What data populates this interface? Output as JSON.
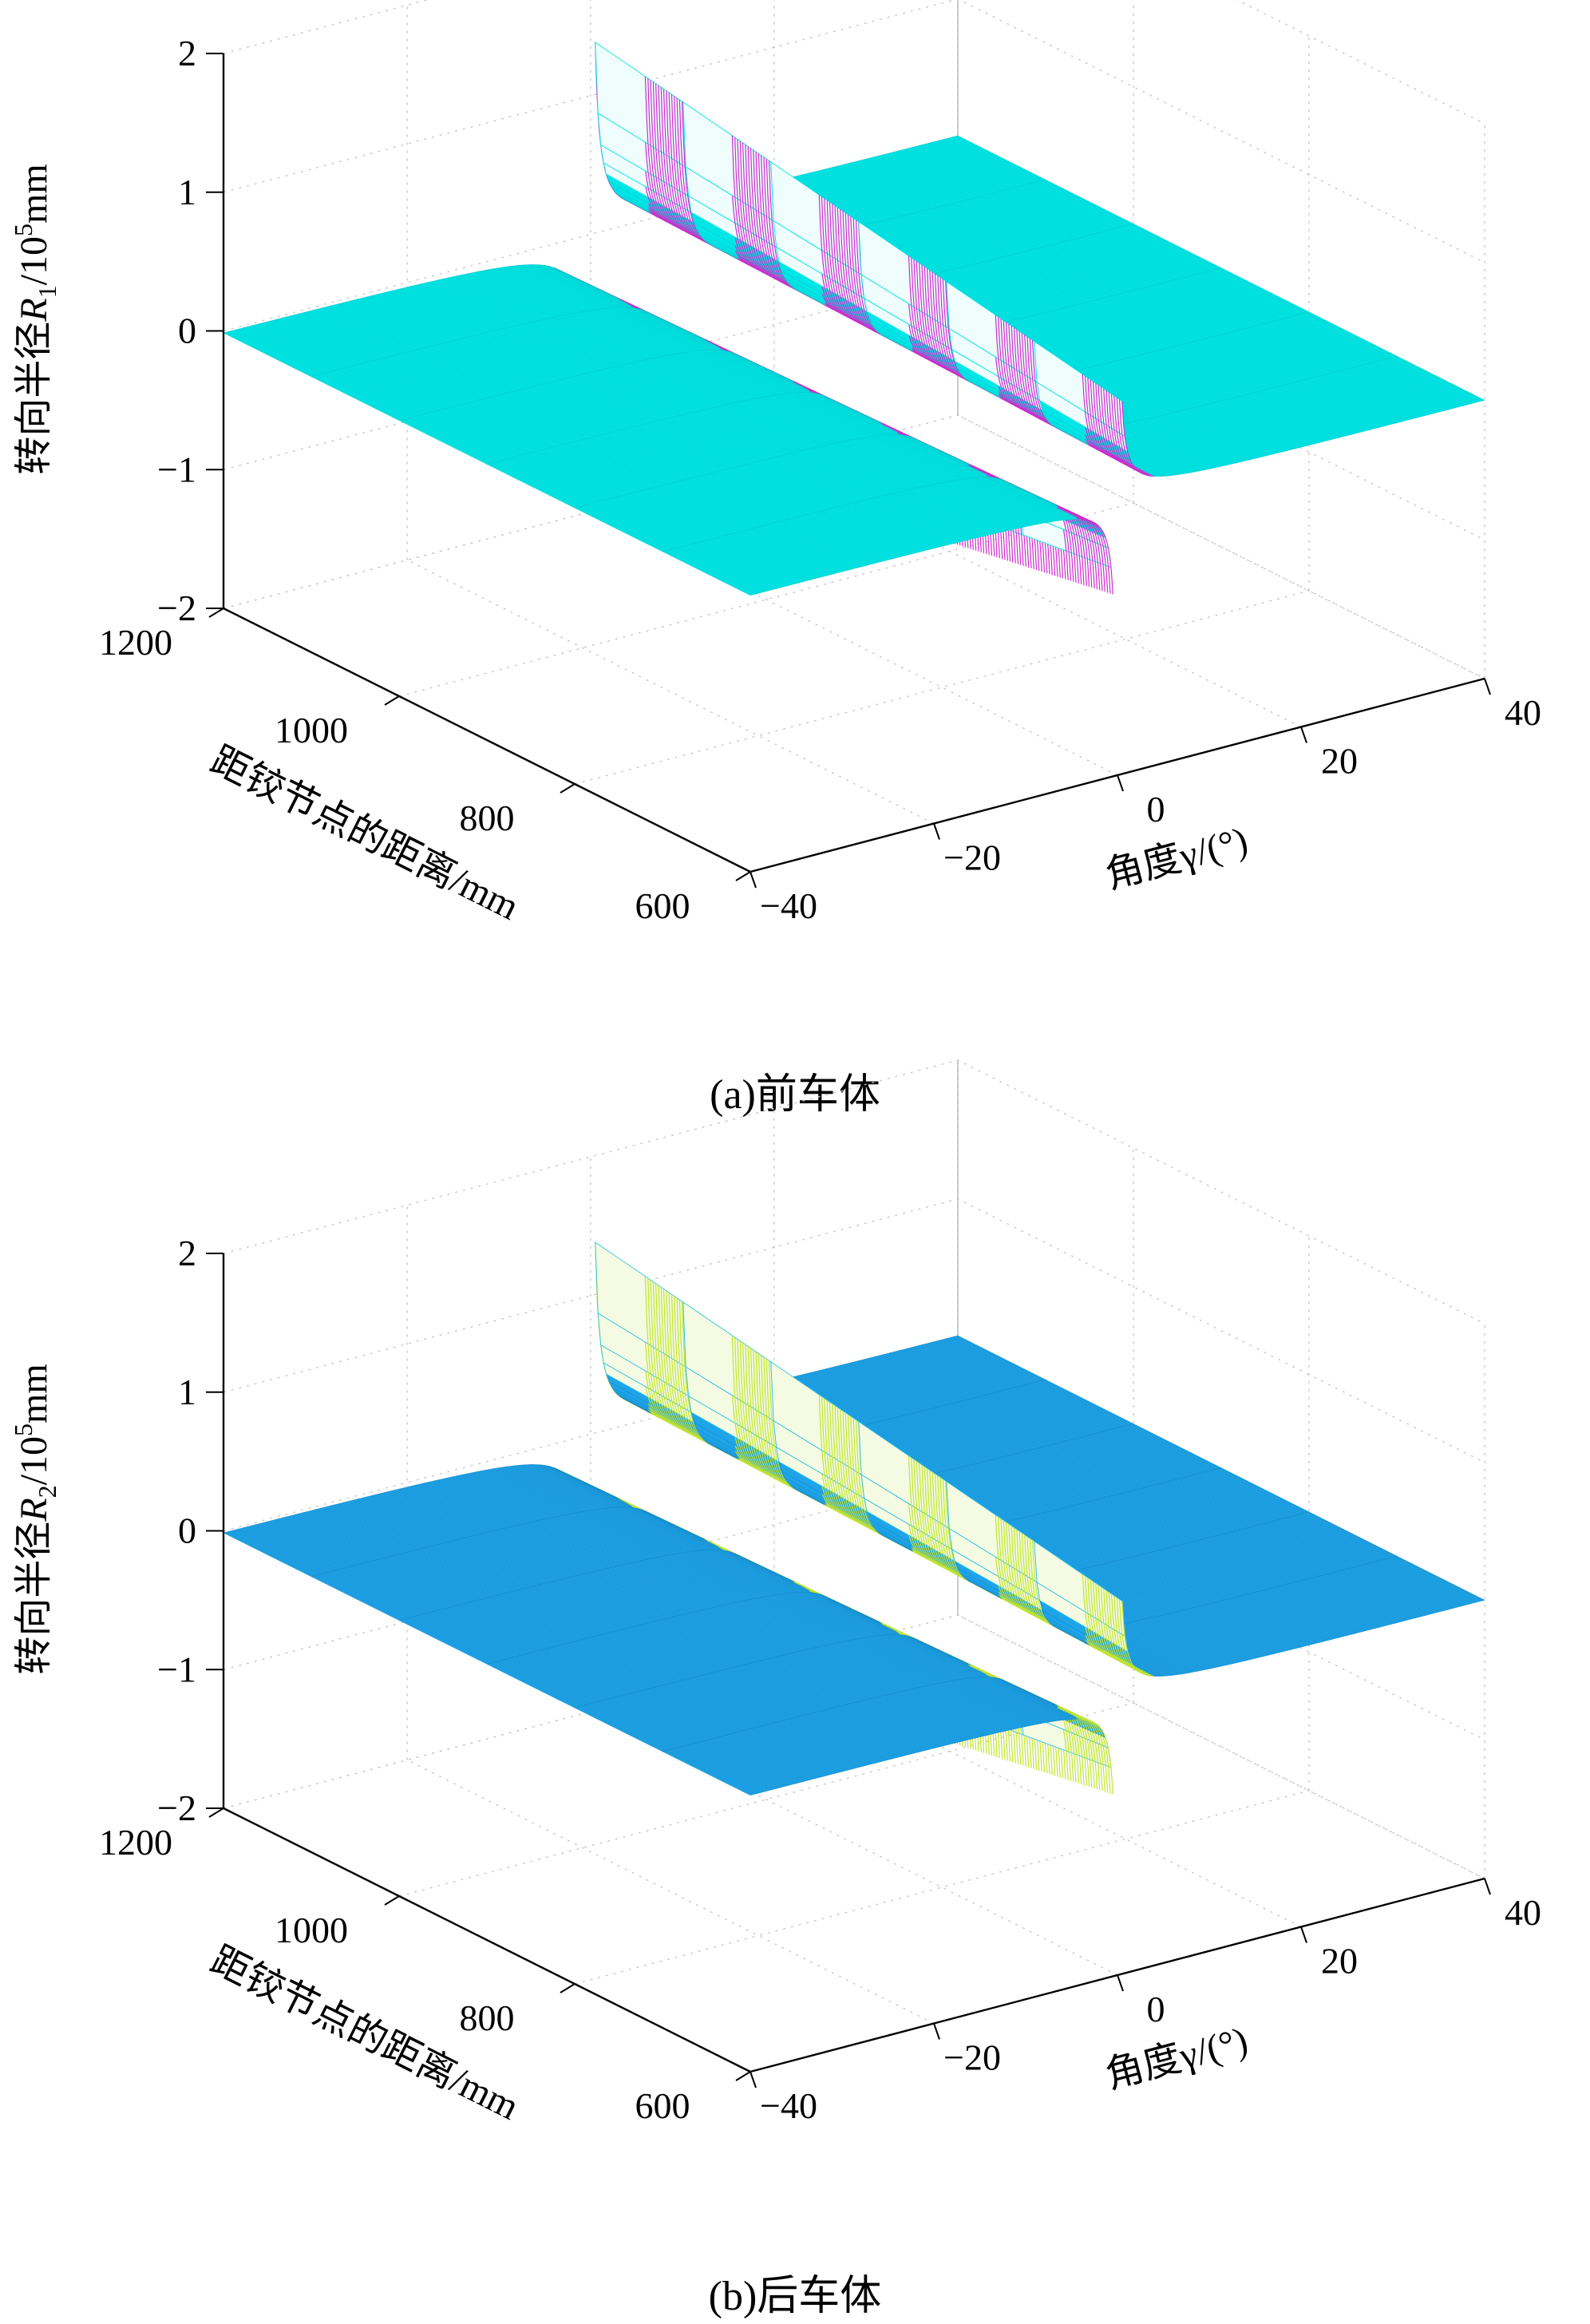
{
  "figure": {
    "background": "#ffffff"
  },
  "chart_data": {
    "type": "surface",
    "title": "",
    "description": "Two MATLAB-style 3D surface plots of steering radius versus articulation angle and distance from the hinge point; front car body (a) and rear car body (b). Each surface has two flat plateaus near R=0 and a steep hatched wall near angle = 0 where the radius diverges.",
    "x_axis": {
      "label": "角度γ/(°)",
      "range": [
        -40,
        40
      ],
      "tick_values": [
        -40,
        -20,
        0,
        20,
        40
      ],
      "tick_labels": [
        "−40",
        "−20",
        "0",
        "20",
        "40"
      ]
    },
    "y_axis": {
      "label": "距铰节点的距离/mm",
      "range": [
        600,
        1200
      ],
      "tick_values": [
        600,
        800,
        1000,
        1200
      ],
      "tick_labels": [
        "600",
        "800",
        "1000",
        "1200"
      ]
    },
    "z_axis": {
      "range": [
        -2,
        2
      ],
      "tick_values": [
        -2,
        -1,
        0,
        1,
        2
      ],
      "tick_labels": [
        "−2",
        "−1",
        "0",
        "1",
        "2"
      ],
      "unit": "10^5 mm"
    },
    "surface_function": "R(γ,d) = d / tan(γ·π/180) / 1e5, clipped to z-range [−2, 2] (units of 10^5 mm); singular at γ = 0",
    "grid": {
      "gamma_start": -40,
      "gamma_end": 40,
      "gamma_step": 0.3,
      "gamma_gap": 0.45,
      "d_values": [
        600,
        700,
        800,
        900,
        1000,
        1100,
        1200
      ],
      "clip": [
        -2,
        2
      ],
      "hatch": {
        "d_step": 3,
        "gamma_min": 0.5,
        "gamma_max": 4,
        "gamma_step": 0.15
      }
    },
    "plots": [
      {
        "id": "a",
        "caption": "(a)前车体",
        "zlabel": {
          "prefix": "转向半径",
          "var": "R",
          "sub": "1",
          "mid": "/10",
          "sup": "5",
          "unit": "mm"
        },
        "colors": {
          "surface": "#00e6e6",
          "surface_edge": "#00c9c9",
          "wall": "#cb2fcb",
          "wall_bg": "#effdfd",
          "wall_edge": "#00e6e6"
        }
      },
      {
        "id": "b",
        "caption": "(b)后车体",
        "zlabel": {
          "prefix": "转向半径",
          "var": "R",
          "sub": "2",
          "mid": "/10",
          "sup": "5",
          "unit": "mm"
        },
        "colors": {
          "surface": "#1ea4e8",
          "surface_edge": "#1587c6",
          "wall": "#c3e431",
          "wall_bg": "#f4fbe2",
          "wall_edge": "#2fc3e6"
        }
      }
    ]
  }
}
